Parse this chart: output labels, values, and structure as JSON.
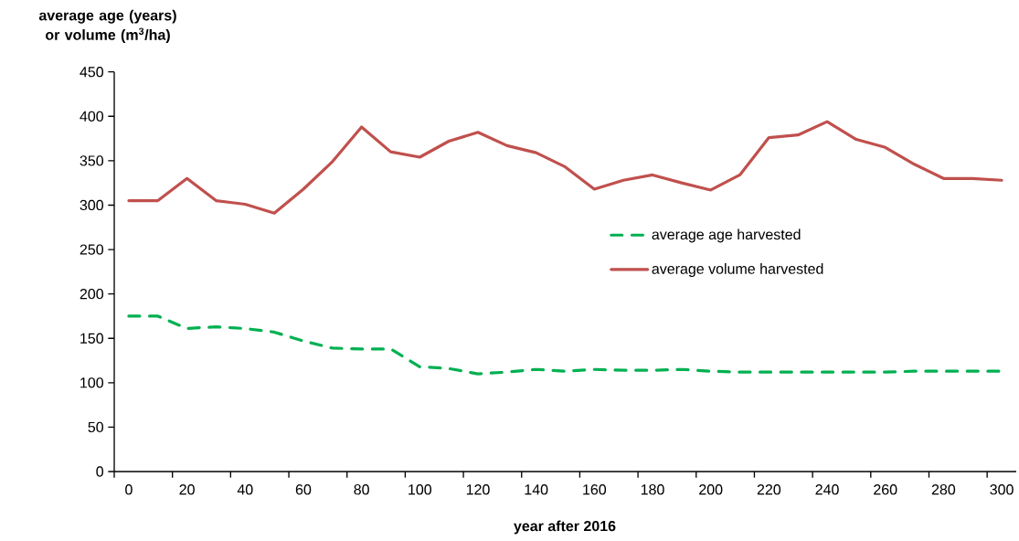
{
  "chart_data": {
    "type": "line",
    "xlabel": "year after 2016",
    "ylabel": "average age  (years) or volume (m$^{3}$/ha)",
    "categories": [
      "0",
      null,
      "20",
      null,
      "40",
      null,
      "60",
      null,
      "80",
      null,
      "100",
      null,
      "120",
      null,
      "140",
      null,
      "160",
      null,
      "180",
      null,
      "200",
      null,
      "220",
      null,
      "240",
      null,
      "260",
      null,
      "280",
      null,
      "300"
    ],
    "ylim": [
      0,
      450
    ],
    "yticks": [
      0,
      50,
      100,
      150,
      200,
      250,
      300,
      350,
      400,
      450
    ],
    "grid": false,
    "legend": "right",
    "series": [
      {
        "name": "average age harvested",
        "color": "#00b050",
        "line_style": "dashed",
        "values": [
          175,
          175,
          161,
          163,
          161,
          157,
          147,
          139,
          138,
          138,
          118,
          116,
          110,
          112,
          115,
          113,
          115,
          114,
          114,
          115,
          113,
          112,
          112,
          112,
          112,
          112,
          112,
          113,
          113,
          113,
          113
        ]
      },
      {
        "name": "average volume harvested",
        "color": "#c0504d",
        "line_style": "solid",
        "values": [
          305,
          305,
          330,
          305,
          301,
          291,
          318,
          349,
          388,
          360,
          354,
          372,
          382,
          367,
          359,
          343,
          318,
          328,
          334,
          325,
          317,
          334,
          376,
          379,
          394,
          374,
          365,
          346,
          330,
          330,
          328
        ]
      }
    ]
  }
}
